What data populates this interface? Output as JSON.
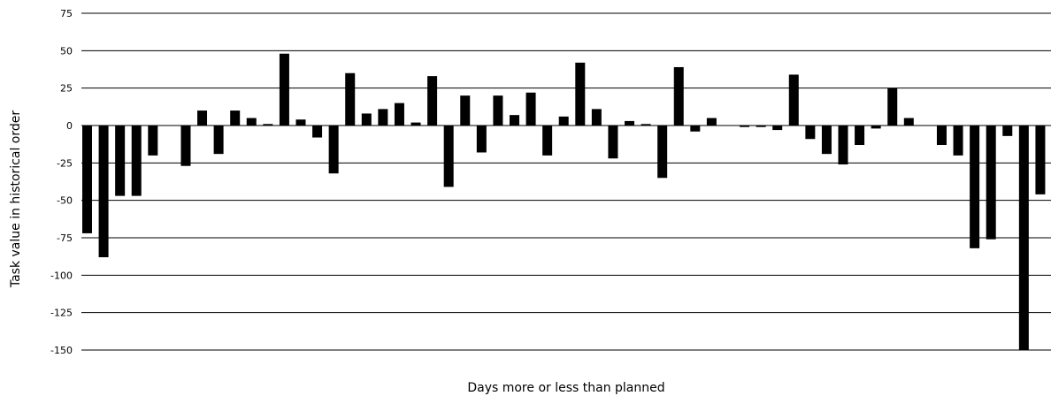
{
  "chart_data": {
    "type": "bar",
    "title": "",
    "xlabel": "Days more or less than planned",
    "ylabel": "Task value in historical order",
    "ylim": [
      -150,
      75
    ],
    "yticks": [
      75,
      50,
      25,
      0,
      -25,
      -50,
      -75,
      -100,
      -125,
      -150
    ],
    "grid": true,
    "legend": "none",
    "bar_color": "#000000",
    "values": [
      -72,
      -88,
      -47,
      -47,
      -20,
      0,
      -27,
      10,
      -19,
      10,
      5,
      1,
      48,
      4,
      -8,
      -32,
      35,
      8,
      11,
      15,
      2,
      33,
      -41,
      20,
      -18,
      20,
      7,
      22,
      -20,
      6,
      42,
      11,
      -22,
      3,
      1,
      -35,
      39,
      -4,
      5,
      0,
      -1,
      -1,
      -3,
      34,
      -9,
      -19,
      -26,
      -13,
      -2,
      25,
      5,
      0,
      -13,
      -20,
      -82,
      -76,
      -7,
      -150,
      -46
    ]
  }
}
